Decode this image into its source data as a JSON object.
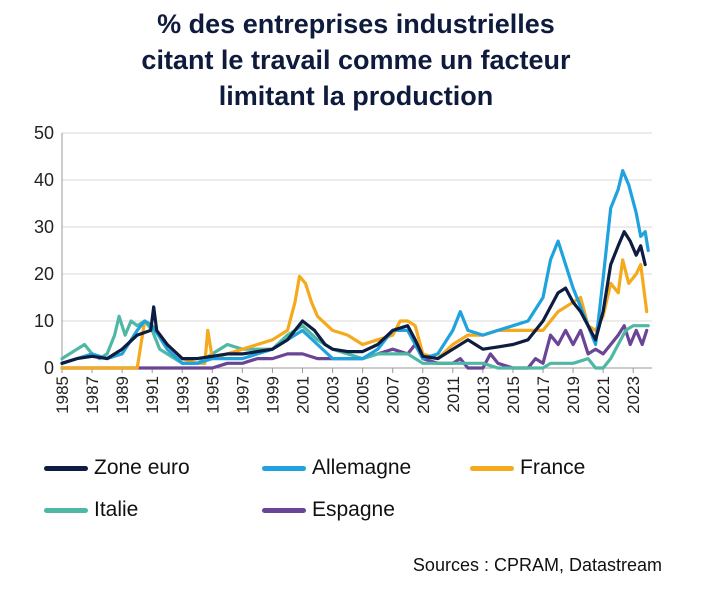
{
  "colors": {
    "Zone euro": "#0d1c40",
    "Allemagne": "#1fa2dd",
    "France": "#f4aa1c",
    "Italie": "#4fb8a5",
    "Espagne": "#6a4495"
  },
  "source": "Sources : CPRAM, Datastream",
  "chart_data": {
    "type": "line",
    "title": "% des entreprises industrielles citant le travail comme un facteur limitant la production",
    "title_lines": [
      "% des entreprises industrielles",
      "citant le travail comme un facteur",
      "limitant la production"
    ],
    "xlim": [
      1985,
      2024.25
    ],
    "ylim": [
      0,
      50
    ],
    "yticks": [
      0,
      10,
      20,
      30,
      40,
      50
    ],
    "xticks": [
      "1985",
      "1987",
      "1989",
      "1991",
      "1993",
      "1995",
      "1997",
      "1999",
      "2001",
      "2003",
      "2005",
      "2007",
      "2009",
      "2011",
      "2013",
      "2015",
      "2017",
      "2019",
      "2021",
      "2023"
    ],
    "grid": "horizontal",
    "legend_position": "bottom",
    "series": [
      {
        "name": "Zone euro",
        "points": [
          [
            1985,
            1
          ],
          [
            1986,
            2
          ],
          [
            1987,
            2.5
          ],
          [
            1988,
            2
          ],
          [
            1989,
            4
          ],
          [
            1990,
            7
          ],
          [
            1990.9,
            8
          ],
          [
            1991.1,
            13
          ],
          [
            1991.3,
            8
          ],
          [
            1992,
            5
          ],
          [
            1993,
            2
          ],
          [
            1994,
            2
          ],
          [
            1995,
            2.5
          ],
          [
            1996,
            3
          ],
          [
            1997,
            3
          ],
          [
            1998,
            3.5
          ],
          [
            1999,
            4
          ],
          [
            2000,
            6
          ],
          [
            2001,
            10
          ],
          [
            2001.8,
            8
          ],
          [
            2002.5,
            5
          ],
          [
            2003,
            4
          ],
          [
            2004,
            3.5
          ],
          [
            2005,
            3.5
          ],
          [
            2006,
            5
          ],
          [
            2007,
            8
          ],
          [
            2008,
            9
          ],
          [
            2008.5,
            6
          ],
          [
            2009,
            2.5
          ],
          [
            2010,
            2
          ],
          [
            2011,
            4
          ],
          [
            2012,
            6
          ],
          [
            2012.5,
            5
          ],
          [
            2013,
            4
          ],
          [
            2014,
            4.5
          ],
          [
            2015,
            5
          ],
          [
            2016,
            6
          ],
          [
            2017,
            10
          ],
          [
            2018,
            16
          ],
          [
            2018.5,
            17
          ],
          [
            2019,
            14
          ],
          [
            2019.5,
            12
          ],
          [
            2020,
            9
          ],
          [
            2020.5,
            6
          ],
          [
            2021,
            12
          ],
          [
            2021.5,
            22
          ],
          [
            2022,
            26
          ],
          [
            2022.4,
            29
          ],
          [
            2022.8,
            27
          ],
          [
            2023.2,
            24
          ],
          [
            2023.5,
            26
          ],
          [
            2023.8,
            22
          ]
        ]
      },
      {
        "name": "Allemagne",
        "points": [
          [
            1985,
            1
          ],
          [
            1986,
            2
          ],
          [
            1987,
            3
          ],
          [
            1988,
            2
          ],
          [
            1989,
            3
          ],
          [
            1990,
            8
          ],
          [
            1990.5,
            10
          ],
          [
            1991,
            9
          ],
          [
            1992,
            4
          ],
          [
            1993,
            1
          ],
          [
            1994,
            1
          ],
          [
            1995,
            2
          ],
          [
            1996,
            2
          ],
          [
            1997,
            2
          ],
          [
            1998,
            3
          ],
          [
            1999,
            4
          ],
          [
            2000,
            6
          ],
          [
            2001,
            8
          ],
          [
            2002,
            5
          ],
          [
            2003,
            2
          ],
          [
            2004,
            2
          ],
          [
            2005,
            2
          ],
          [
            2006,
            4
          ],
          [
            2007,
            8
          ],
          [
            2008,
            8
          ],
          [
            2009,
            2
          ],
          [
            2010,
            3
          ],
          [
            2011,
            8
          ],
          [
            2011.5,
            12
          ],
          [
            2012,
            8
          ],
          [
            2013,
            7
          ],
          [
            2014,
            8
          ],
          [
            2015,
            9
          ],
          [
            2016,
            10
          ],
          [
            2017,
            15
          ],
          [
            2017.5,
            23
          ],
          [
            2018,
            27
          ],
          [
            2018.5,
            22
          ],
          [
            2019,
            17
          ],
          [
            2020,
            9
          ],
          [
            2020.5,
            5
          ],
          [
            2021,
            19
          ],
          [
            2021.5,
            34
          ],
          [
            2022,
            38
          ],
          [
            2022.3,
            42
          ],
          [
            2022.7,
            39
          ],
          [
            2023.2,
            33
          ],
          [
            2023.5,
            28
          ],
          [
            2023.8,
            29
          ],
          [
            2024,
            25
          ]
        ]
      },
      {
        "name": "France",
        "points": [
          [
            1985,
            0
          ],
          [
            1986,
            0
          ],
          [
            1987,
            0
          ],
          [
            1988,
            0
          ],
          [
            1989,
            0
          ],
          [
            1990,
            0
          ],
          [
            1990.5,
            10
          ],
          [
            1991,
            9
          ],
          [
            1991.5,
            7
          ],
          [
            1992,
            5
          ],
          [
            1993,
            2
          ],
          [
            1994,
            1
          ],
          [
            1994.5,
            1
          ],
          [
            1994.7,
            8
          ],
          [
            1995,
            2
          ],
          [
            1996,
            3
          ],
          [
            1997,
            4
          ],
          [
            1998,
            5
          ],
          [
            1999,
            6
          ],
          [
            2000,
            8
          ],
          [
            2000.5,
            14
          ],
          [
            2000.8,
            19.5
          ],
          [
            2001.2,
            18
          ],
          [
            2001.6,
            14
          ],
          [
            2002,
            11
          ],
          [
            2003,
            8
          ],
          [
            2004,
            7
          ],
          [
            2005,
            5
          ],
          [
            2006,
            6
          ],
          [
            2007,
            7
          ],
          [
            2007.5,
            10
          ],
          [
            2008,
            10
          ],
          [
            2008.5,
            9
          ],
          [
            2009,
            3
          ],
          [
            2010,
            2
          ],
          [
            2011,
            5
          ],
          [
            2012,
            7
          ],
          [
            2013,
            7
          ],
          [
            2014,
            8
          ],
          [
            2015,
            8
          ],
          [
            2016,
            8
          ],
          [
            2017,
            8
          ],
          [
            2018,
            12
          ],
          [
            2019,
            14
          ],
          [
            2019.5,
            15
          ],
          [
            2020,
            9
          ],
          [
            2020.5,
            8
          ],
          [
            2021,
            11
          ],
          [
            2021.5,
            18
          ],
          [
            2022,
            16
          ],
          [
            2022.3,
            23
          ],
          [
            2022.7,
            18
          ],
          [
            2023.2,
            20
          ],
          [
            2023.5,
            22
          ],
          [
            2023.9,
            12
          ]
        ]
      },
      {
        "name": "Italie",
        "points": [
          [
            1985,
            2
          ],
          [
            1986,
            4
          ],
          [
            1986.5,
            5
          ],
          [
            1987,
            3
          ],
          [
            1987.5,
            2
          ],
          [
            1988,
            3
          ],
          [
            1988.5,
            7
          ],
          [
            1988.8,
            11
          ],
          [
            1989.2,
            7
          ],
          [
            1989.6,
            10
          ],
          [
            1990,
            9
          ],
          [
            1990.5,
            10
          ],
          [
            1991,
            8
          ],
          [
            1991.5,
            4
          ],
          [
            1992,
            3
          ],
          [
            1993,
            1
          ],
          [
            1994,
            1
          ],
          [
            1995,
            3
          ],
          [
            1996,
            5
          ],
          [
            1997,
            4
          ],
          [
            1998,
            4
          ],
          [
            1999,
            4
          ],
          [
            2000,
            7
          ],
          [
            2001,
            9
          ],
          [
            2002,
            6
          ],
          [
            2003,
            4
          ],
          [
            2004,
            3
          ],
          [
            2005,
            2
          ],
          [
            2006,
            3
          ],
          [
            2007,
            3
          ],
          [
            2008,
            3
          ],
          [
            2009,
            1
          ],
          [
            2010,
            1
          ],
          [
            2011,
            1
          ],
          [
            2012,
            1
          ],
          [
            2013,
            1
          ],
          [
            2014,
            0
          ],
          [
            2015,
            0
          ],
          [
            2016,
            0
          ],
          [
            2017,
            0
          ],
          [
            2017.5,
            1
          ],
          [
            2018,
            1
          ],
          [
            2019,
            1
          ],
          [
            2020,
            2
          ],
          [
            2020.5,
            0
          ],
          [
            2021,
            0
          ],
          [
            2021.5,
            2
          ],
          [
            2022,
            5
          ],
          [
            2022.5,
            8
          ],
          [
            2023,
            9
          ],
          [
            2023.5,
            9
          ],
          [
            2024,
            9
          ]
        ]
      },
      {
        "name": "Espagne",
        "points": [
          [
            1985,
            0
          ],
          [
            1986,
            0
          ],
          [
            1987,
            0
          ],
          [
            1988,
            0
          ],
          [
            1989,
            0
          ],
          [
            1990,
            0
          ],
          [
            1991,
            0
          ],
          [
            1992,
            0
          ],
          [
            1993,
            0
          ],
          [
            1994,
            0
          ],
          [
            1995,
            0
          ],
          [
            1996,
            1
          ],
          [
            1997,
            1
          ],
          [
            1998,
            2
          ],
          [
            1999,
            2
          ],
          [
            2000,
            3
          ],
          [
            2001,
            3
          ],
          [
            2002,
            2
          ],
          [
            2003,
            2
          ],
          [
            2004,
            2
          ],
          [
            2005,
            2
          ],
          [
            2006,
            3
          ],
          [
            2007,
            4
          ],
          [
            2008,
            3
          ],
          [
            2008.5,
            5
          ],
          [
            2009,
            2
          ],
          [
            2010,
            1
          ],
          [
            2011,
            1
          ],
          [
            2011.5,
            2
          ],
          [
            2012,
            0
          ],
          [
            2013,
            0
          ],
          [
            2013.5,
            3
          ],
          [
            2014,
            1
          ],
          [
            2015,
            0
          ],
          [
            2016,
            0
          ],
          [
            2016.5,
            2
          ],
          [
            2017,
            1
          ],
          [
            2017.5,
            7
          ],
          [
            2018,
            5
          ],
          [
            2018.5,
            8
          ],
          [
            2019,
            5
          ],
          [
            2019.5,
            8
          ],
          [
            2020,
            3
          ],
          [
            2020.5,
            4
          ],
          [
            2021,
            3
          ],
          [
            2021.5,
            5
          ],
          [
            2022,
            7
          ],
          [
            2022.4,
            9
          ],
          [
            2022.8,
            5
          ],
          [
            2023.2,
            8
          ],
          [
            2023.6,
            5
          ],
          [
            2023.9,
            8
          ]
        ]
      }
    ],
    "legend": [
      "Zone euro",
      "Allemagne",
      "France",
      "Italie",
      "Espagne"
    ]
  }
}
